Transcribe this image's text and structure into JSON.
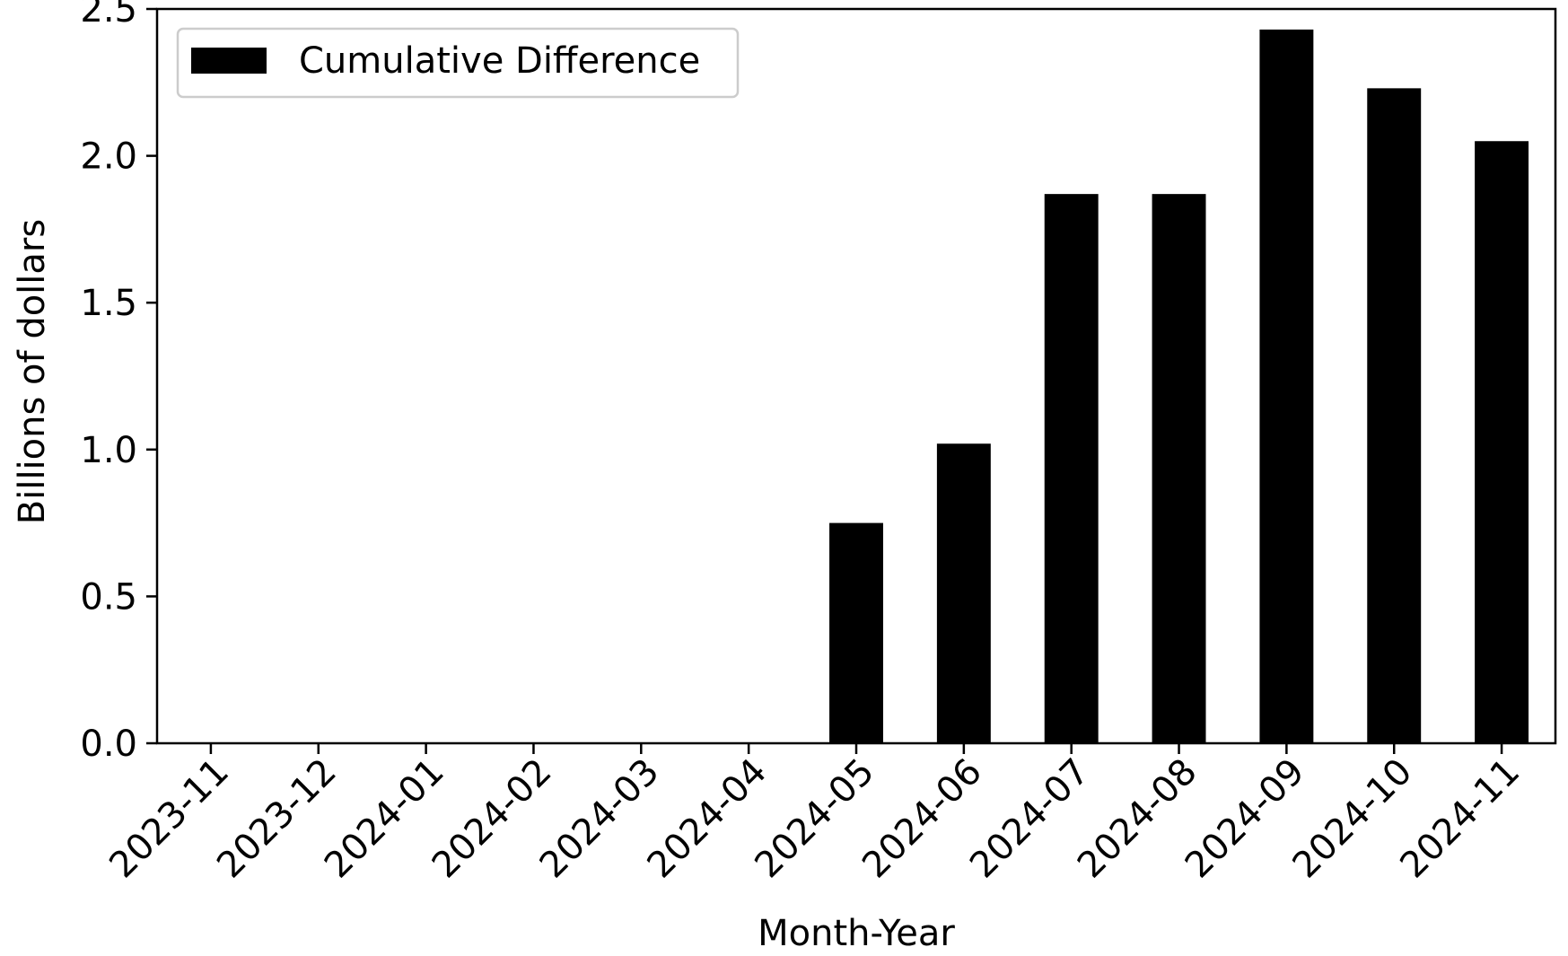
{
  "chart_data": {
    "type": "bar",
    "title": "",
    "xlabel": "Month-Year",
    "ylabel": "Billions of dollars",
    "categories": [
      "2023-11",
      "2023-12",
      "2024-01",
      "2024-02",
      "2024-03",
      "2024-04",
      "2024-05",
      "2024-06",
      "2024-07",
      "2024-08",
      "2024-09",
      "2024-10",
      "2024-11"
    ],
    "series": [
      {
        "name": "Cumulative Difference",
        "color": "#000000",
        "values": [
          0,
          0,
          0,
          0,
          0,
          0,
          0.75,
          1.02,
          1.87,
          1.87,
          2.43,
          2.23,
          2.05
        ]
      }
    ],
    "ylim": [
      0,
      2.5
    ],
    "yticks": [
      "0.0",
      "0.5",
      "1.0",
      "1.5",
      "2.0",
      "2.5"
    ],
    "ytick_values": [
      0,
      0.5,
      1.0,
      1.5,
      2.0,
      2.5
    ],
    "grid": false,
    "legend_position": "top-left"
  }
}
